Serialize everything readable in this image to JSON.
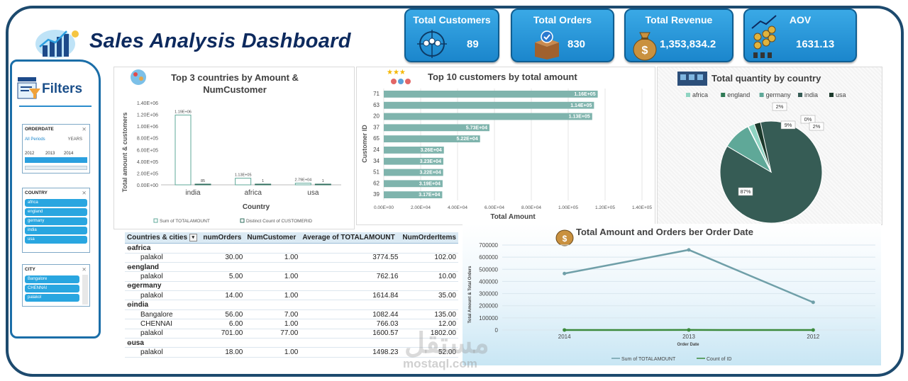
{
  "title": "Sales Analysis Dashboard",
  "kpis": [
    {
      "title": "Total Customers",
      "value": "89",
      "icon": "customers-group-icon"
    },
    {
      "title": "Total Orders",
      "value": "830",
      "icon": "order-box-icon"
    },
    {
      "title": "Total Revenue",
      "value": "1,353,834.2",
      "icon": "money-bag-icon"
    },
    {
      "title": "AOV",
      "value": "1631.13",
      "icon": "coins-growth-icon"
    }
  ],
  "filters": {
    "title": "Filters",
    "orderdate": {
      "header": "ORDERDATE",
      "period": "All Periods",
      "unit": "YEARS",
      "years": [
        "2012",
        "2013",
        "2014"
      ]
    },
    "country": {
      "header": "COUNTRY",
      "items": [
        "africa",
        "england",
        "germany",
        "india",
        "usa"
      ]
    },
    "city": {
      "header": "CITY",
      "items": [
        "Bangalore",
        "CHENNAI",
        "palakol"
      ]
    }
  },
  "chart_top3": {
    "title_line1": "Top 3 countries by Amount &",
    "title_line2": "NumCustomer",
    "ylabel": "Total amount & customers",
    "xlabel": "Country",
    "yticks": [
      "0.00E+00",
      "2.00E+05",
      "4.00E+05",
      "6.00E+05",
      "8.00E+05",
      "1.00E+06",
      "1.20E+06",
      "1.40E+06"
    ],
    "legend": [
      "Sum of TOTALAMOUNT",
      "Distinct Count of CUSTOMERID"
    ]
  },
  "chart_top10": {
    "title": "Top 10 customers by total amount",
    "ylabel": "Customer ID",
    "xlabel": "Total Amount",
    "xticks": [
      "0.00E+00",
      "2.00E+04",
      "4.00E+04",
      "6.00E+04",
      "8.00E+04",
      "1.00E+05",
      "1.20E+05",
      "1.40E+05"
    ]
  },
  "chart_pie": {
    "title": "Total quantity by country",
    "legend": [
      "africa",
      "england",
      "germany",
      "india",
      "usa"
    ]
  },
  "chart_line": {
    "title": "Total Amount and Orders ber Order Date",
    "ylabel": "Total Amount & Total Orders",
    "xlabel": "Order Date",
    "yticks": [
      "0",
      "100000",
      "200000",
      "300000",
      "400000",
      "500000",
      "600000",
      "700000"
    ],
    "legend": [
      "Sum of TOTALAMOUNT",
      "Count of ID"
    ]
  },
  "table": {
    "headers": [
      "Countries & cities",
      "numOrders",
      "NumCustomer",
      "Average of TOTALAMOUNT",
      "NumOrderItems"
    ],
    "rows": [
      {
        "type": "group",
        "label": "africa"
      },
      {
        "type": "row",
        "label": "palakol",
        "vals": [
          "30.00",
          "1.00",
          "3774.55",
          "102.00"
        ]
      },
      {
        "type": "group",
        "label": "england"
      },
      {
        "type": "row",
        "label": "palakol",
        "vals": [
          "5.00",
          "1.00",
          "762.16",
          "10.00"
        ]
      },
      {
        "type": "group",
        "label": "germany"
      },
      {
        "type": "row",
        "label": "palakol",
        "vals": [
          "14.00",
          "1.00",
          "1614.84",
          "35.00"
        ]
      },
      {
        "type": "group",
        "label": "india"
      },
      {
        "type": "row",
        "label": "Bangalore",
        "vals": [
          "56.00",
          "7.00",
          "1082.44",
          "135.00"
        ]
      },
      {
        "type": "row",
        "label": "CHENNAI",
        "vals": [
          "6.00",
          "1.00",
          "766.03",
          "12.00"
        ]
      },
      {
        "type": "row",
        "label": "palakol",
        "vals": [
          "701.00",
          "77.00",
          "1600.57",
          "1802.00"
        ]
      },
      {
        "type": "group",
        "label": "usa"
      },
      {
        "type": "row",
        "label": "palakol",
        "vals": [
          "18.00",
          "1.00",
          "1498.23",
          "52.00"
        ]
      }
    ]
  },
  "watermark": {
    "text": "مستقل",
    "url": "mostaql.com"
  },
  "chart_data": [
    {
      "type": "bar",
      "title": "Top 3 countries by Amount & NumCustomer",
      "xlabel": "Country",
      "ylabel": "Total amount & customers",
      "categories": [
        "india",
        "africa",
        "usa"
      ],
      "series": [
        {
          "name": "Sum of TOTALAMOUNT",
          "values": [
            1190000,
            113000,
            27900
          ],
          "labels": [
            "1.19E+06",
            "1.13E+05",
            "2.79E+04"
          ]
        },
        {
          "name": "Distinct Count of CUSTOMERID",
          "values": [
            85,
            1,
            1
          ],
          "labels": [
            "85",
            "1",
            "1"
          ]
        }
      ],
      "ylim": [
        0,
        1400000
      ],
      "legend": "bottom",
      "colors": [
        "#5fa898",
        "#2f6e5e"
      ]
    },
    {
      "type": "bar",
      "orientation": "horizontal",
      "title": "Top 10 customers by total amount",
      "xlabel": "Total Amount",
      "ylabel": "Customer ID",
      "categories": [
        "71",
        "63",
        "20",
        "37",
        "65",
        "24",
        "34",
        "51",
        "62",
        "39"
      ],
      "values": [
        116000,
        114000,
        113000,
        57300,
        52200,
        32600,
        32300,
        32200,
        31900,
        31700
      ],
      "labels": [
        "1.16E+05",
        "1.14E+05",
        "1.13E+05",
        "5.73E+04",
        "5.22E+04",
        "3.26E+04",
        "3.23E+04",
        "3.22E+04",
        "3.19E+04",
        "3.17E+04"
      ],
      "xlim": [
        0,
        140000
      ],
      "color": "#7fb4ad"
    },
    {
      "type": "pie",
      "title": "Total quantity by country",
      "categories": [
        "india",
        "germany",
        "england",
        "africa",
        "usa"
      ],
      "values": [
        87,
        9,
        0,
        2,
        2
      ],
      "labels": [
        "87%",
        "9%",
        "0%",
        "2%",
        "2%"
      ],
      "colors": [
        "#365c55",
        "#5fa898",
        "#2f7a55",
        "#8fd4c2",
        "#1c3a2c"
      ],
      "legend": "top"
    },
    {
      "type": "line",
      "title": "Total Amount and Orders ber Order Date",
      "xlabel": "Order Date",
      "ylabel": "Total Amount & Total Orders",
      "x": [
        "2014",
        "2013",
        "2012"
      ],
      "series": [
        {
          "name": "Sum of TOTALAMOUNT",
          "values": [
            465000,
            660000,
            228000
          ],
          "color": "#6f9fa8"
        },
        {
          "name": "Count of ID",
          "values": [
            270,
            408,
            152
          ],
          "color": "#3c8a3c"
        }
      ],
      "ylim": [
        0,
        700000
      ],
      "legend": "bottom"
    }
  ]
}
